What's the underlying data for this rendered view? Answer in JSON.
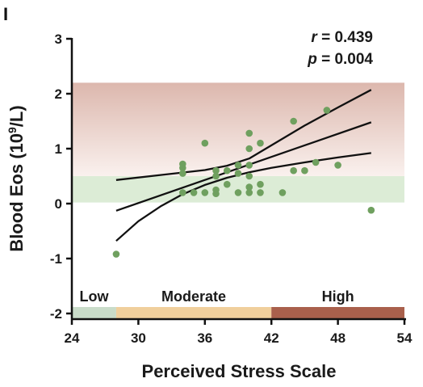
{
  "panel_label": "I",
  "chart_data": {
    "type": "scatter",
    "xlabel": "Perceived Stress Scale",
    "ylabel": {
      "prefix": "Blood Eos (10",
      "sup": "9",
      "suffix": "/L)"
    },
    "xlim": [
      24,
      54
    ],
    "ylim": [
      -2,
      3
    ],
    "xticks": [
      "24",
      "30",
      "36",
      "42",
      "48",
      "54"
    ],
    "yticks": [
      "-2",
      "-1",
      "0",
      "1",
      "2",
      "3"
    ],
    "stats": {
      "r_symbol": "r",
      "r_value": " = 0.439",
      "p_symbol": "p",
      "p_value": " = 0.004"
    },
    "shaded_regions": [
      {
        "name": "elevated",
        "y0": 0.5,
        "y1": 2.2,
        "color_top": "#dcb7ad",
        "color_bottom": "#faf1ee"
      },
      {
        "name": "normal",
        "y0": 0.02,
        "y1": 0.5,
        "color": "#dcecd6"
      }
    ],
    "stress_bands": [
      {
        "label": "Low",
        "x0": 24,
        "x1": 28,
        "color": "#c9dcc9"
      },
      {
        "label": "Moderate",
        "x0": 28,
        "x1": 42,
        "color": "#f0cf9c"
      },
      {
        "label": "High",
        "x0": 42,
        "x1": 54,
        "color": "#a9604c"
      }
    ],
    "fit_line": {
      "color": "#111111",
      "points": [
        [
          28,
          -0.13
        ],
        [
          51,
          1.48
        ]
      ]
    },
    "confidence_band": {
      "upper": [
        [
          28,
          0.43
        ],
        [
          32,
          0.52
        ],
        [
          36,
          0.61
        ],
        [
          38,
          0.69
        ],
        [
          40,
          0.82
        ],
        [
          42,
          1.06
        ],
        [
          45,
          1.42
        ],
        [
          48,
          1.75
        ],
        [
          51,
          2.07
        ]
      ],
      "lower": [
        [
          28,
          -0.68
        ],
        [
          30,
          -0.32
        ],
        [
          32,
          -0.05
        ],
        [
          34,
          0.17
        ],
        [
          36,
          0.34
        ],
        [
          38,
          0.47
        ],
        [
          40,
          0.57
        ],
        [
          42,
          0.65
        ],
        [
          45,
          0.75
        ],
        [
          48,
          0.84
        ],
        [
          51,
          0.92
        ]
      ]
    },
    "point_color": "#6fa05f",
    "points": [
      {
        "x": 28,
        "y": -0.92
      },
      {
        "x": 34,
        "y": 0.2
      },
      {
        "x": 34,
        "y": 0.55
      },
      {
        "x": 34,
        "y": 0.65
      },
      {
        "x": 34,
        "y": 0.72
      },
      {
        "x": 35,
        "y": 0.2
      },
      {
        "x": 36,
        "y": 1.1
      },
      {
        "x": 36,
        "y": 0.2
      },
      {
        "x": 37,
        "y": 0.18
      },
      {
        "x": 37,
        "y": 0.25
      },
      {
        "x": 37,
        "y": 0.5
      },
      {
        "x": 37,
        "y": 0.6
      },
      {
        "x": 38,
        "y": 0.35
      },
      {
        "x": 38,
        "y": 0.6
      },
      {
        "x": 39,
        "y": 0.2
      },
      {
        "x": 39,
        "y": 0.55
      },
      {
        "x": 39,
        "y": 0.7
      },
      {
        "x": 40,
        "y": 0.2
      },
      {
        "x": 40,
        "y": 0.3
      },
      {
        "x": 40,
        "y": 0.5
      },
      {
        "x": 40,
        "y": 0.7
      },
      {
        "x": 40,
        "y": 1.0
      },
      {
        "x": 40,
        "y": 1.28
      },
      {
        "x": 41,
        "y": 0.2
      },
      {
        "x": 41,
        "y": 0.35
      },
      {
        "x": 41,
        "y": 1.1
      },
      {
        "x": 43,
        "y": 0.2
      },
      {
        "x": 44,
        "y": 0.6
      },
      {
        "x": 44,
        "y": 1.5
      },
      {
        "x": 45,
        "y": 0.6
      },
      {
        "x": 46,
        "y": 0.75
      },
      {
        "x": 47,
        "y": 1.7
      },
      {
        "x": 48,
        "y": 0.7
      },
      {
        "x": 51,
        "y": -0.12
      }
    ]
  }
}
